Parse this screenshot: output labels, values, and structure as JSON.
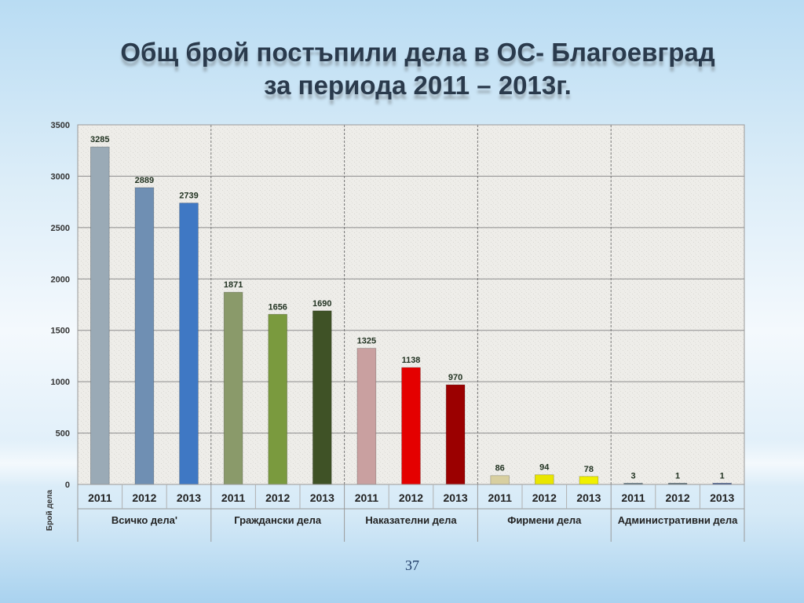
{
  "slide": {
    "title_line1": "Общ брой постъпили дела в ОС- Благоевград",
    "title_line2": "за периода 2011 – 2013г.",
    "page_number": "37"
  },
  "chart_data": {
    "type": "bar",
    "ylabel": "Брой дела",
    "ylim": [
      0,
      3500
    ],
    "yticks": [
      0,
      500,
      1000,
      1500,
      2000,
      2500,
      3000,
      3500
    ],
    "grid": true,
    "groups": [
      {
        "name": "Всичко дела'",
        "years": [
          "2011",
          "2012",
          "2013"
        ],
        "values": [
          3285,
          2889,
          2739
        ],
        "colors": [
          "#9aaab6",
          "#6f8fb3",
          "#3f78c4"
        ]
      },
      {
        "name": "Граждански дела",
        "years": [
          "2011",
          "2012",
          "2013"
        ],
        "values": [
          1871,
          1656,
          1690
        ],
        "colors": [
          "#8a9a6a",
          "#7a9a3e",
          "#3f5226"
        ]
      },
      {
        "name": "Наказателни дела",
        "years": [
          "2011",
          "2012",
          "2013"
        ],
        "values": [
          1325,
          1138,
          970
        ],
        "colors": [
          "#c9a0a0",
          "#e40000",
          "#9b0000"
        ]
      },
      {
        "name": "Фирмени дела",
        "years": [
          "2011",
          "2012",
          "2013"
        ],
        "values": [
          86,
          94,
          78
        ],
        "colors": [
          "#d8cfa0",
          "#e9e600",
          "#f0f000"
        ]
      },
      {
        "name": "Административни дела",
        "years": [
          "2011",
          "2012",
          "2013"
        ],
        "values": [
          3,
          1,
          1
        ],
        "colors": [
          "#4a6b7a",
          "#3c5a6a",
          "#1f3f8a"
        ]
      }
    ]
  }
}
